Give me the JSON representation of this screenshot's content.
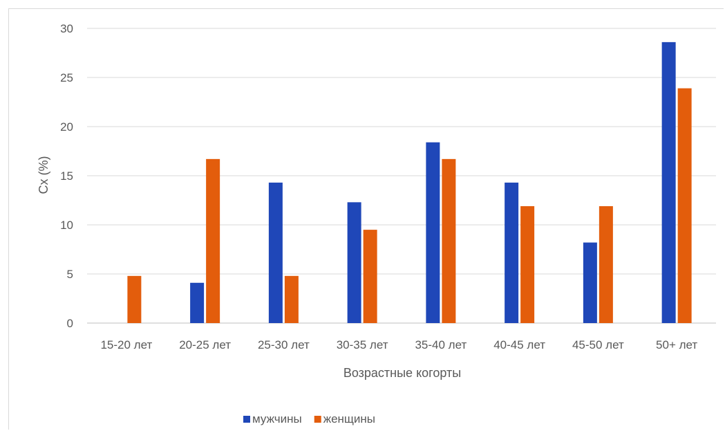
{
  "chart_data": {
    "type": "bar",
    "categories": [
      "15-20 лет",
      "20-25 лет",
      "25-30 лет",
      "30-35 лет",
      "35-40 лет",
      "40-45 лет",
      "45-50 лет",
      "50+ лет"
    ],
    "series": [
      {
        "name": "мужчины",
        "color": "#1f47b8",
        "values": [
          0,
          4.1,
          14.3,
          12.3,
          18.4,
          14.3,
          8.2,
          28.6
        ]
      },
      {
        "name": "женщины",
        "color": "#e35d0c",
        "values": [
          4.8,
          16.7,
          4.8,
          9.5,
          16.7,
          11.9,
          11.9,
          23.9
        ]
      }
    ],
    "xlabel": "Возрастные когорты",
    "ylabel": "Cx (%)",
    "ylim": [
      0,
      30
    ],
    "yticks": [
      0,
      5,
      10,
      15,
      20,
      25,
      30
    ],
    "grid": true,
    "legend_position": "bottom"
  }
}
